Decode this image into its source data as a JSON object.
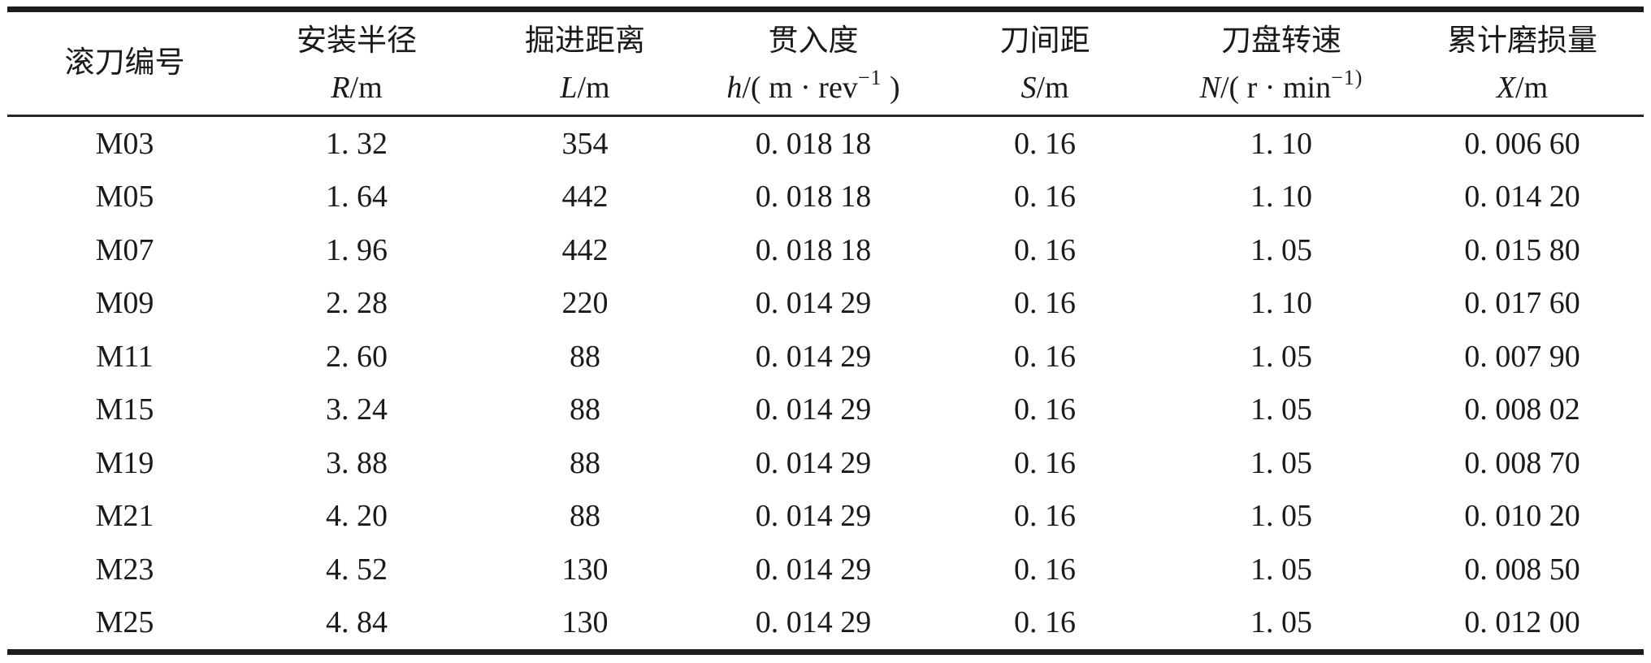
{
  "colors": {
    "background": "#ffffff",
    "text": "#1a1a1a",
    "rule": "#1c1c1c"
  },
  "table": {
    "columns": [
      {
        "key": "cutter-number",
        "name": "滚刀编号"
      },
      {
        "key": "install-radius",
        "name": "安装半径",
        "unit_var": "R",
        "unit_rest": "/m"
      },
      {
        "key": "advance-distance",
        "name": "掘进距离",
        "unit_var": "L",
        "unit_rest": "/m"
      },
      {
        "key": "penetration",
        "name": "贯入度",
        "unit_var": "h",
        "unit_rest": "/( m · rev",
        "unit_sup": "−1",
        "unit_tail": " )"
      },
      {
        "key": "cutter-spacing",
        "name": "刀间距",
        "unit_var": "S",
        "unit_rest": "/m"
      },
      {
        "key": "cutterhead-speed",
        "name": "刀盘转速",
        "unit_var": "N",
        "unit_rest": "/( r · min",
        "unit_sup": "−1)",
        "unit_tail": ""
      },
      {
        "key": "cumulative-wear",
        "name": "累计磨损量",
        "unit_var": "X",
        "unit_rest": "/m"
      }
    ],
    "rows": [
      [
        "M03",
        "1. 32",
        "354",
        "0. 018 18",
        "0. 16",
        "1. 10",
        "0. 006 60"
      ],
      [
        "M05",
        "1. 64",
        "442",
        "0. 018 18",
        "0. 16",
        "1. 10",
        "0. 014 20"
      ],
      [
        "M07",
        "1. 96",
        "442",
        "0. 018 18",
        "0. 16",
        "1. 05",
        "0. 015 80"
      ],
      [
        "M09",
        "2. 28",
        "220",
        "0. 014 29",
        "0. 16",
        "1. 10",
        "0. 017 60"
      ],
      [
        "M11",
        "2. 60",
        "88",
        "0. 014 29",
        "0. 16",
        "1. 05",
        "0. 007 90"
      ],
      [
        "M15",
        "3. 24",
        "88",
        "0. 014 29",
        "0. 16",
        "1. 05",
        "0. 008 02"
      ],
      [
        "M19",
        "3. 88",
        "88",
        "0. 014 29",
        "0. 16",
        "1. 05",
        "0. 008 70"
      ],
      [
        "M21",
        "4. 20",
        "88",
        "0. 014 29",
        "0. 16",
        "1. 05",
        "0. 010 20"
      ],
      [
        "M23",
        "4. 52",
        "130",
        "0. 014 29",
        "0. 16",
        "1. 05",
        "0. 008 50"
      ],
      [
        "M25",
        "4. 84",
        "130",
        "0. 014 29",
        "0. 16",
        "1. 05",
        "0. 012 00"
      ]
    ]
  }
}
